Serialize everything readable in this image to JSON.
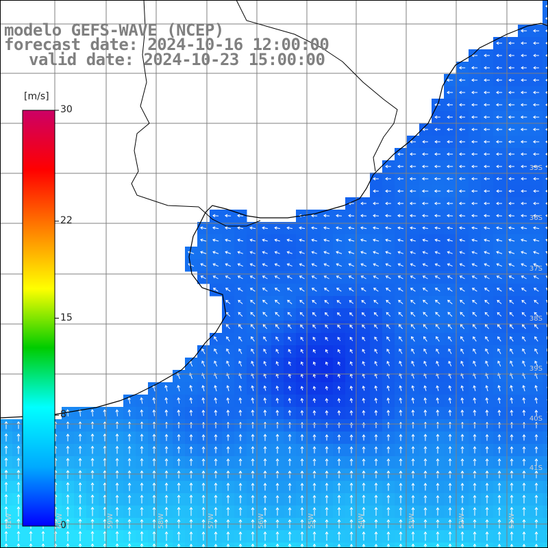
{
  "title": {
    "line1": "modelo GEFS-WAVE (NCEP)",
    "line2": "forecast date: 2024-10-16 12:00:00",
    "line3": "valid date: 2024-10-23 15:00:00"
  },
  "legend": {
    "unit": "[m/s]",
    "min": 0,
    "max": 30,
    "ticks": [
      {
        "value": 30,
        "label": "30"
      },
      {
        "value": 22,
        "label": "22"
      },
      {
        "value": 15,
        "label": "15"
      },
      {
        "value": 8,
        "label": "8"
      },
      {
        "value": 0,
        "label": "0"
      }
    ],
    "colors": [
      "#0000ff",
      "#00aaff",
      "#00ffff",
      "#00cc00",
      "#ffff00",
      "#ff8000",
      "#ff0000",
      "#cc0066"
    ]
  },
  "map": {
    "lat_labels": [
      "35S",
      "36S",
      "37S",
      "38S",
      "39S",
      "40S",
      "41S"
    ],
    "lon_labels": [
      "61W",
      "60W",
      "59W",
      "58W",
      "57W",
      "56W",
      "55W",
      "54W",
      "53W",
      "52W",
      "51W"
    ],
    "field": "wind speed (m/s) with direction arrows",
    "colors": {
      "land": "#ffffff",
      "sea_slow": "#0a28e6",
      "sea_fast": "#28e1ff",
      "arrows": "#ffffff",
      "grid": "#808080",
      "coast": "#000000"
    }
  }
}
